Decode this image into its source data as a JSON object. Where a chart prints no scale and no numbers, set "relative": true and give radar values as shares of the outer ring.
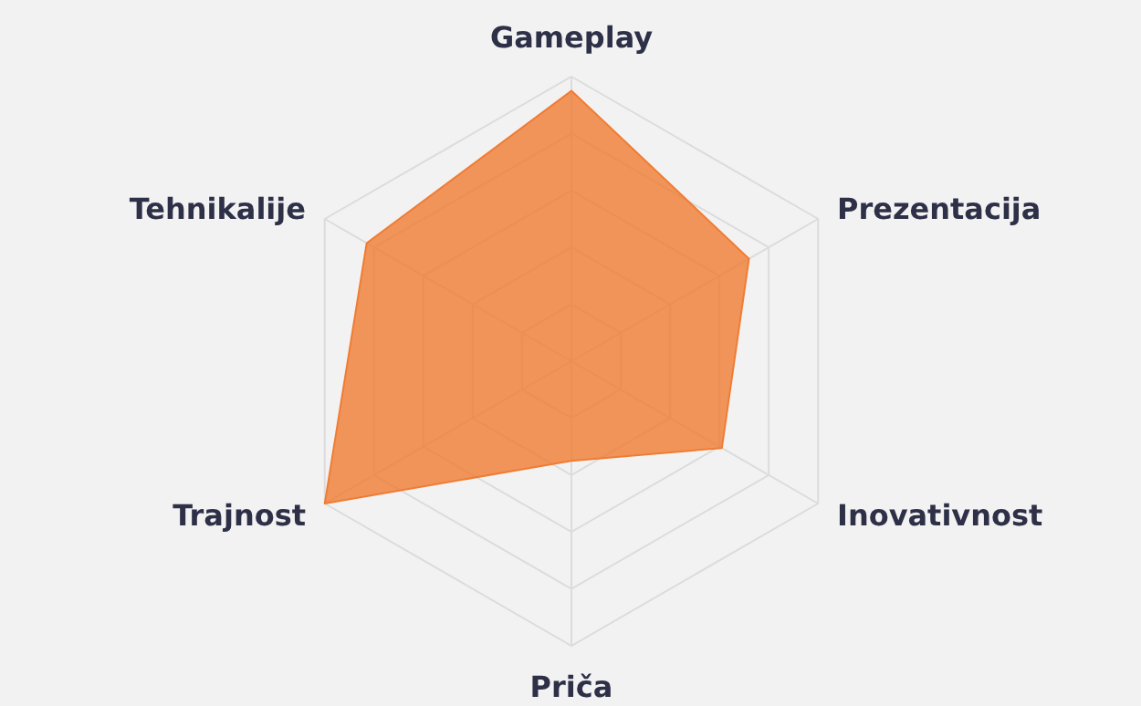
{
  "chart_data": {
    "type": "radar",
    "relative": true,
    "grid": true,
    "categories": [
      "Gameplay",
      "Prezentacija",
      "Inovativnost",
      "Priča",
      "Trajnost",
      "Tehnikalije"
    ],
    "series": [
      {
        "color": "#f07c33",
        "values": [
          0.95,
          0.72,
          0.61,
          0.35,
          1,
          0.83
        ]
      }
    ]
  }
}
